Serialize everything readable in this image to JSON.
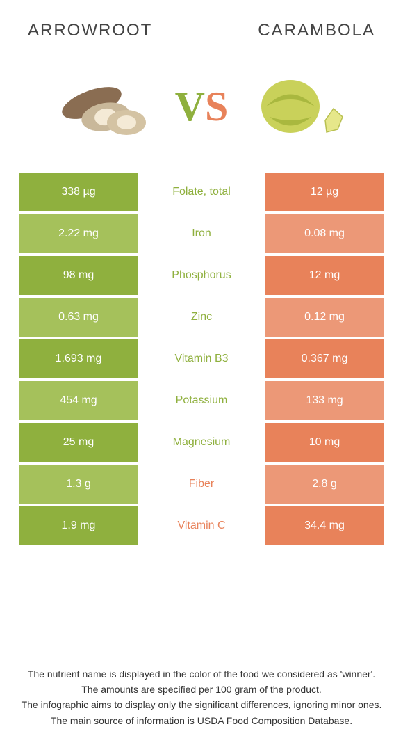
{
  "header": {
    "left_title": "ARROWROOT",
    "right_title": "CARAMBOLA"
  },
  "vs": {
    "v": "V",
    "s": "S"
  },
  "colors": {
    "left_dark": "#8fb03e",
    "left_light": "#a5c15b",
    "right_dark": "#e8825a",
    "right_light": "#ec9877",
    "mid_left_text": "#8fb03e",
    "mid_right_text": "#e8825a"
  },
  "rows": [
    {
      "left": "338 µg",
      "label": "Folate, total",
      "right": "12 µg",
      "winner": "left"
    },
    {
      "left": "2.22 mg",
      "label": "Iron",
      "right": "0.08 mg",
      "winner": "left"
    },
    {
      "left": "98 mg",
      "label": "Phosphorus",
      "right": "12 mg",
      "winner": "left"
    },
    {
      "left": "0.63 mg",
      "label": "Zinc",
      "right": "0.12 mg",
      "winner": "left"
    },
    {
      "left": "1.693 mg",
      "label": "Vitamin B3",
      "right": "0.367 mg",
      "winner": "left"
    },
    {
      "left": "454 mg",
      "label": "Potassium",
      "right": "133 mg",
      "winner": "left"
    },
    {
      "left": "25 mg",
      "label": "Magnesium",
      "right": "10 mg",
      "winner": "left"
    },
    {
      "left": "1.3 g",
      "label": "Fiber",
      "right": "2.8 g",
      "winner": "right"
    },
    {
      "left": "1.9 mg",
      "label": "Vitamin C",
      "right": "34.4 mg",
      "winner": "right"
    }
  ],
  "footer": {
    "line1": "The nutrient name is displayed in the color of the food we considered as 'winner'.",
    "line2": "The amounts are specified per 100 gram of the product.",
    "line3": "The infographic aims to display only the significant differences, ignoring minor ones.",
    "line4": "The main source of information is USDA Food Composition Database."
  }
}
